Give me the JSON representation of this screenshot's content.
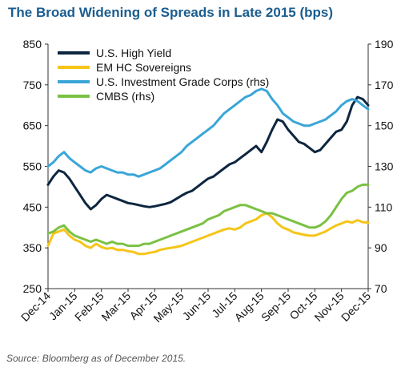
{
  "chart_data": {
    "type": "line",
    "title": "The Broad Widening of Spreads in Late 2015 (bps)",
    "source": "Source: Bloomberg as of December 2015.",
    "x_ticks": [
      "Dec-14",
      "Jan-15",
      "Feb-15",
      "Mar-15",
      "Apr-15",
      "May-15",
      "Jun-15",
      "Jul-15",
      "Aug-15",
      "Sep-15",
      "Oct-15",
      "Nov-15",
      "Dec-15"
    ],
    "ylim_left": [
      250,
      850
    ],
    "y_ticks_left": [
      250,
      350,
      450,
      550,
      650,
      750,
      850
    ],
    "ylim_right": [
      70,
      190
    ],
    "y_ticks_right": [
      70,
      90,
      110,
      130,
      150,
      170,
      190
    ],
    "grid": false,
    "legend_position": "top-left",
    "series": [
      {
        "name": "U.S. High Yield",
        "axis": "left",
        "color": "#0d2640",
        "x": [
          0,
          0.2,
          0.4,
          0.6,
          0.8,
          1,
          1.2,
          1.4,
          1.6,
          1.8,
          2,
          2.2,
          2.4,
          2.6,
          2.8,
          3,
          3.2,
          3.4,
          3.6,
          3.8,
          4,
          4.2,
          4.4,
          4.6,
          4.8,
          5,
          5.2,
          5.4,
          5.6,
          5.8,
          6,
          6.2,
          6.4,
          6.6,
          6.8,
          7,
          7.2,
          7.4,
          7.6,
          7.8,
          8,
          8.2,
          8.4,
          8.6,
          8.8,
          9,
          9.2,
          9.4,
          9.6,
          9.8,
          10,
          10.2,
          10.4,
          10.6,
          10.8,
          11,
          11.2,
          11.4,
          11.6,
          11.8,
          12
        ],
        "values": [
          505,
          525,
          540,
          535,
          520,
          500,
          480,
          460,
          445,
          455,
          470,
          480,
          475,
          470,
          465,
          460,
          458,
          455,
          452,
          450,
          452,
          455,
          458,
          462,
          470,
          478,
          485,
          490,
          500,
          510,
          520,
          525,
          535,
          545,
          555,
          560,
          570,
          580,
          590,
          600,
          585,
          610,
          640,
          665,
          660,
          640,
          625,
          610,
          605,
          595,
          585,
          590,
          605,
          620,
          635,
          640,
          660,
          700,
          720,
          715,
          700
        ]
      },
      {
        "name": "EM HC Sovereigns",
        "axis": "left",
        "color": "#f5c518",
        "x": [
          0,
          0.2,
          0.4,
          0.6,
          0.8,
          1,
          1.2,
          1.4,
          1.6,
          1.8,
          2,
          2.2,
          2.4,
          2.6,
          2.8,
          3,
          3.2,
          3.4,
          3.6,
          3.8,
          4,
          4.2,
          4.4,
          4.6,
          4.8,
          5,
          5.2,
          5.4,
          5.6,
          5.8,
          6,
          6.2,
          6.4,
          6.6,
          6.8,
          7,
          7.2,
          7.4,
          7.6,
          7.8,
          8,
          8.2,
          8.4,
          8.6,
          8.8,
          9,
          9.2,
          9.4,
          9.6,
          9.8,
          10,
          10.2,
          10.4,
          10.6,
          10.8,
          11,
          11.2,
          11.4,
          11.6,
          11.8,
          12
        ],
        "values": [
          355,
          385,
          390,
          395,
          380,
          370,
          365,
          355,
          350,
          360,
          352,
          348,
          350,
          345,
          345,
          342,
          340,
          335,
          335,
          338,
          340,
          345,
          348,
          350,
          352,
          355,
          360,
          365,
          370,
          375,
          380,
          385,
          390,
          395,
          398,
          395,
          400,
          410,
          415,
          420,
          430,
          435,
          425,
          410,
          400,
          395,
          388,
          385,
          382,
          380,
          380,
          385,
          390,
          398,
          405,
          410,
          415,
          412,
          418,
          413,
          412
        ]
      },
      {
        "name": "U.S. Investment Grade Corps (rhs)",
        "axis": "right",
        "color": "#3aa6d8",
        "x": [
          0,
          0.2,
          0.4,
          0.6,
          0.8,
          1,
          1.2,
          1.4,
          1.6,
          1.8,
          2,
          2.2,
          2.4,
          2.6,
          2.8,
          3,
          3.2,
          3.4,
          3.6,
          3.8,
          4,
          4.2,
          4.4,
          4.6,
          4.8,
          5,
          5.2,
          5.4,
          5.6,
          5.8,
          6,
          6.2,
          6.4,
          6.6,
          6.8,
          7,
          7.2,
          7.4,
          7.6,
          7.8,
          8,
          8.2,
          8.4,
          8.6,
          8.8,
          9,
          9.2,
          9.4,
          9.6,
          9.8,
          10,
          10.2,
          10.4,
          10.6,
          10.8,
          11,
          11.2,
          11.4,
          11.6,
          11.8,
          12
        ],
        "values": [
          130,
          132,
          135,
          137,
          134,
          132,
          130,
          128,
          127,
          129,
          130,
          129,
          128,
          127,
          127,
          126,
          126,
          125,
          126,
          127,
          128,
          129,
          131,
          133,
          135,
          137,
          140,
          142,
          144,
          146,
          148,
          150,
          153,
          156,
          158,
          160,
          162,
          164,
          165,
          167,
          168,
          167,
          163,
          160,
          156,
          154,
          152,
          151,
          150,
          150,
          151,
          152,
          153,
          155,
          157,
          160,
          162,
          163,
          162,
          160,
          158
        ]
      },
      {
        "name": "CMBS (rhs)",
        "axis": "right",
        "color": "#7ac143",
        "x": [
          0,
          0.2,
          0.4,
          0.6,
          0.8,
          1,
          1.2,
          1.4,
          1.6,
          1.8,
          2,
          2.2,
          2.4,
          2.6,
          2.8,
          3,
          3.2,
          3.4,
          3.6,
          3.8,
          4,
          4.2,
          4.4,
          4.6,
          4.8,
          5,
          5.2,
          5.4,
          5.6,
          5.8,
          6,
          6.2,
          6.4,
          6.6,
          6.8,
          7,
          7.2,
          7.4,
          7.6,
          7.8,
          8,
          8.2,
          8.4,
          8.6,
          8.8,
          9,
          9.2,
          9.4,
          9.6,
          9.8,
          10,
          10.2,
          10.4,
          10.6,
          10.8,
          11,
          11.2,
          11.4,
          11.6,
          11.8,
          12
        ],
        "values": [
          97,
          98,
          100,
          101,
          98,
          96,
          95,
          94,
          93,
          94,
          93,
          92,
          93,
          92,
          92,
          91,
          91,
          91,
          92,
          92,
          93,
          94,
          95,
          96,
          97,
          98,
          99,
          100,
          101,
          102,
          104,
          105,
          106,
          108,
          109,
          110,
          111,
          111,
          110,
          109,
          108,
          107,
          107,
          106,
          105,
          104,
          103,
          102,
          101,
          100,
          100,
          101,
          103,
          106,
          110,
          114,
          117,
          118,
          120,
          121,
          121
        ]
      }
    ]
  }
}
